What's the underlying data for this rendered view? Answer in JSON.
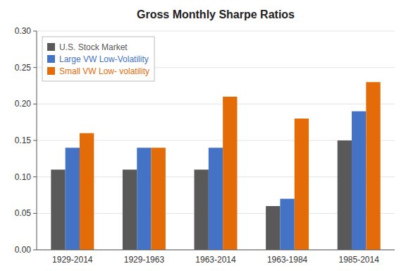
{
  "chart_data": {
    "type": "bar",
    "title": "Gross Monthly Sharpe Ratios",
    "categories": [
      "1929-2014",
      "1929-1963",
      "1963-2014",
      "1963-1984",
      "1985-2014"
    ],
    "series": [
      {
        "name": "U.S. Stock Market",
        "color": "#595959",
        "values": [
          0.11,
          0.11,
          0.11,
          0.06,
          0.15
        ]
      },
      {
        "name": "Large VW Low-Volatility",
        "color": "#4472C4",
        "values": [
          0.14,
          0.14,
          0.14,
          0.07,
          0.19
        ]
      },
      {
        "name": "Small VW Low- volatility",
        "color": "#E36C09",
        "values": [
          0.16,
          0.14,
          0.21,
          0.18,
          0.23
        ]
      }
    ],
    "ylim": [
      0.0,
      0.3
    ],
    "yticks": [
      {
        "value": 0.0,
        "label": "0.00"
      },
      0.05,
      {
        "value": 0.1,
        "label": "0.10"
      },
      0.15,
      {
        "value": 0.2,
        "label": "0.20"
      },
      0.25,
      {
        "value": 0.3,
        "label": "0.30"
      }
    ],
    "grid": true,
    "legend": "upper left"
  }
}
